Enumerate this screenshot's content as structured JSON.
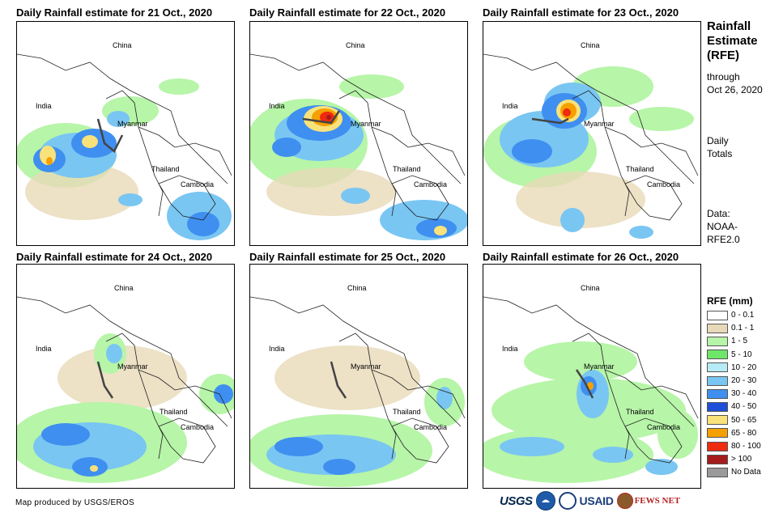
{
  "panels": [
    {
      "title": "Daily Rainfall estimate for 21 Oct., 2020"
    },
    {
      "title": "Daily Rainfall estimate for 22 Oct., 2020"
    },
    {
      "title": "Daily Rainfall estimate for 23 Oct., 2020"
    },
    {
      "title": "Daily Rainfall estimate for 24 Oct., 2020"
    },
    {
      "title": "Daily Rainfall estimate for 25 Oct., 2020"
    },
    {
      "title": "Daily Rainfall estimate for 26 Oct., 2020"
    }
  ],
  "map_labels": {
    "china": "China",
    "india": "India",
    "myanmar": "Myanmar",
    "thailand": "Thailand",
    "cambodia": "Cambodia"
  },
  "sidebar": {
    "title_line1": "Rainfall",
    "title_line2": "Estimate",
    "title_line3": "(RFE)",
    "through": "through",
    "through_date": "Oct 26, 2020",
    "totals_line1": "Daily",
    "totals_line2": "Totals",
    "data_line1": "Data:",
    "data_line2": "NOAA-",
    "data_line3": "RFE2.0"
  },
  "legend": {
    "title": "RFE (mm)",
    "items": [
      {
        "label": "0 - 0.1",
        "color": "#ffffff"
      },
      {
        "label": "0.1 - 1",
        "color": "#e8d9b8"
      },
      {
        "label": "1 - 5",
        "color": "#b7f5a8"
      },
      {
        "label": "5 - 10",
        "color": "#6ee66a"
      },
      {
        "label": "10 - 20",
        "color": "#b5ecf5"
      },
      {
        "label": "20 - 30",
        "color": "#79c6f2"
      },
      {
        "label": "30 - 40",
        "color": "#3f8ff0"
      },
      {
        "label": "40 - 50",
        "color": "#1f4fd9"
      },
      {
        "label": "50 - 65",
        "color": "#f9e27a"
      },
      {
        "label": "65 - 80",
        "color": "#f5a000"
      },
      {
        "label": "80 - 100",
        "color": "#ee2a10"
      },
      {
        "label": "> 100",
        "color": "#a51c1c"
      },
      {
        "label": "No Data",
        "color": "#9a9a9a"
      }
    ]
  },
  "footer": {
    "credit": "Map produced by USGS/EROS"
  },
  "logos": {
    "usgs": "USGS",
    "usaid": "USAID",
    "fews": "FEWS NET"
  }
}
